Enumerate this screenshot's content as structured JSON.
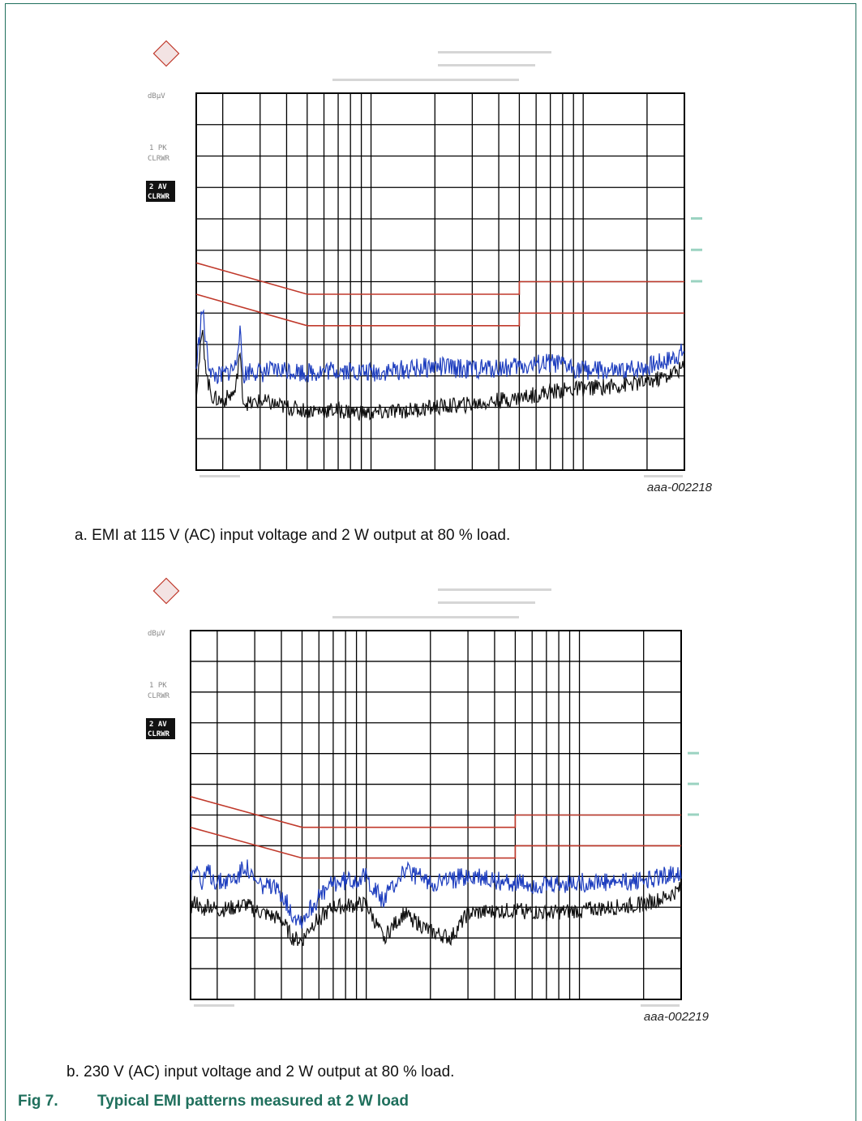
{
  "figures": [
    {
      "id": "figA",
      "caption": "a.  EMI at 115 V (AC) input voltage and 2 W output at 80 % load.",
      "ref_id": "aaa-002218",
      "trace_labels": [
        "1 PK",
        "CLRWR",
        "2 AV",
        "CLRWR"
      ],
      "unit_label": "dBµV",
      "chart_data": {
        "type": "line",
        "x_scale": "log",
        "xlim": [
          150000,
          30000000
        ],
        "ylim": [
          0,
          120
        ],
        "grid": true,
        "colors": {
          "limit": "#c0392b",
          "peak": "#1f3fbf",
          "average": "#111111",
          "grid": "#000000"
        },
        "series": [
          {
            "kind": "limit",
            "x": [
              150000,
              500000,
              500000,
              5000000,
              5000000,
              30000000
            ],
            "values": [
              66,
              56,
              56,
              56,
              60,
              60
            ]
          },
          {
            "kind": "limit",
            "x": [
              150000,
              500000,
              500000,
              5000000,
              5000000,
              30000000
            ],
            "values": [
              56,
              46,
              46,
              46,
              50,
              50
            ]
          },
          {
            "kind": "peak",
            "x": [
              150000,
              160000,
              170000,
              180000,
              200000,
              230000,
              240000,
              250000,
              270000,
              300000,
              400000,
              500000,
              700000,
              1000000,
              1500000,
              2000000,
              3000000,
              5000000,
              7000000,
              10000000,
              15000000,
              20000000,
              25000000,
              30000000
            ],
            "values": [
              32,
              52,
              35,
              30,
              30,
              33,
              45,
              30,
              32,
              31,
              32,
              31,
              32,
              31,
              32,
              33,
              32,
              33,
              34,
              32,
              31,
              33,
              35,
              38
            ]
          },
          {
            "kind": "average",
            "x": [
              150000,
              160000,
              170000,
              180000,
              200000,
              230000,
              240000,
              250000,
              270000,
              300000,
              400000,
              500000,
              700000,
              1000000,
              1500000,
              2000000,
              3000000,
              5000000,
              7000000,
              10000000,
              15000000,
              20000000,
              25000000,
              30000000
            ],
            "values": [
              25,
              44,
              28,
              23,
              22,
              25,
              38,
              22,
              21,
              22,
              20,
              19,
              19,
              18,
              19,
              20,
              21,
              23,
              25,
              26,
              27,
              28,
              30,
              33
            ]
          }
        ]
      }
    },
    {
      "id": "figB",
      "caption": "b.  230 V (AC) input voltage and 2 W output at 80 % load.",
      "ref_id": "aaa-002219",
      "trace_labels": [
        "1 PK",
        "CLRWR",
        "2 AV",
        "CLRWR"
      ],
      "unit_label": "dBµV",
      "chart_data": {
        "type": "line",
        "x_scale": "log",
        "xlim": [
          150000,
          30000000
        ],
        "ylim": [
          0,
          120
        ],
        "grid": true,
        "colors": {
          "limit": "#c0392b",
          "peak": "#1f3fbf",
          "average": "#111111",
          "grid": "#000000"
        },
        "series": [
          {
            "kind": "limit",
            "x": [
              150000,
              500000,
              500000,
              5000000,
              5000000,
              30000000
            ],
            "values": [
              66,
              56,
              56,
              56,
              60,
              60
            ]
          },
          {
            "kind": "limit",
            "x": [
              150000,
              500000,
              500000,
              5000000,
              5000000,
              30000000
            ],
            "values": [
              56,
              46,
              46,
              46,
              50,
              50
            ]
          },
          {
            "kind": "peak",
            "x": [
              150000,
              160000,
              170000,
              180000,
              200000,
              250000,
              270000,
              300000,
              400000,
              450000,
              500000,
              550000,
              700000,
              1000000,
              1200000,
              1500000,
              2000000,
              2500000,
              3000000,
              5000000,
              7000000,
              10000000,
              15000000,
              20000000,
              25000000,
              30000000
            ],
            "values": [
              40,
              45,
              36,
              42,
              38,
              40,
              44,
              38,
              35,
              28,
              26,
              30,
              38,
              40,
              32,
              42,
              38,
              39,
              40,
              38,
              37,
              38,
              38,
              39,
              40,
              42
            ]
          },
          {
            "kind": "average",
            "x": [
              150000,
              160000,
              170000,
              180000,
              200000,
              250000,
              270000,
              300000,
              400000,
              450000,
              500000,
              550000,
              700000,
              1000000,
              1200000,
              1500000,
              2000000,
              2500000,
              3000000,
              5000000,
              7000000,
              10000000,
              15000000,
              20000000,
              25000000,
              30000000
            ],
            "values": [
              30,
              32,
              28,
              31,
              29,
              30,
              31,
              29,
              26,
              20,
              19,
              24,
              30,
              31,
              20,
              28,
              22,
              20,
              28,
              29,
              28,
              29,
              30,
              31,
              33,
              36
            ]
          }
        ]
      }
    }
  ],
  "figure_title": {
    "number": "Fig 7.",
    "text": "Typical EMI patterns measured at 2 W load"
  }
}
